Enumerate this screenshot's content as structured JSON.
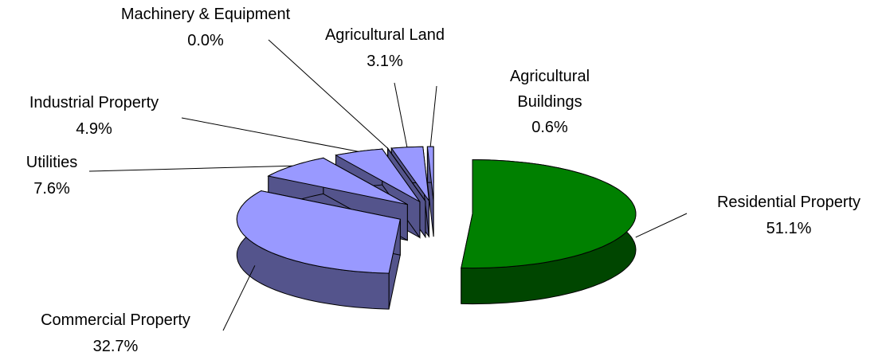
{
  "chart_data": {
    "type": "pie",
    "categories": [
      "Residential Property",
      "Commercial Property",
      "Utilities",
      "Industrial Property",
      "Machinery & Equipment",
      "Agricultural Land",
      "Agricultural Buildings"
    ],
    "values": [
      51.1,
      32.7,
      7.6,
      4.9,
      0,
      3.1,
      0.6
    ],
    "value_labels": [
      "51.1%",
      "32.7%",
      "7.6%",
      "4.9%",
      "0.0%",
      "3.1%",
      "0.6%"
    ],
    "colors": [
      "#008000",
      "#9999ff",
      "#9999ff",
      "#9999ff",
      "#9999ff",
      "#9999ff",
      "#9999ff"
    ]
  }
}
